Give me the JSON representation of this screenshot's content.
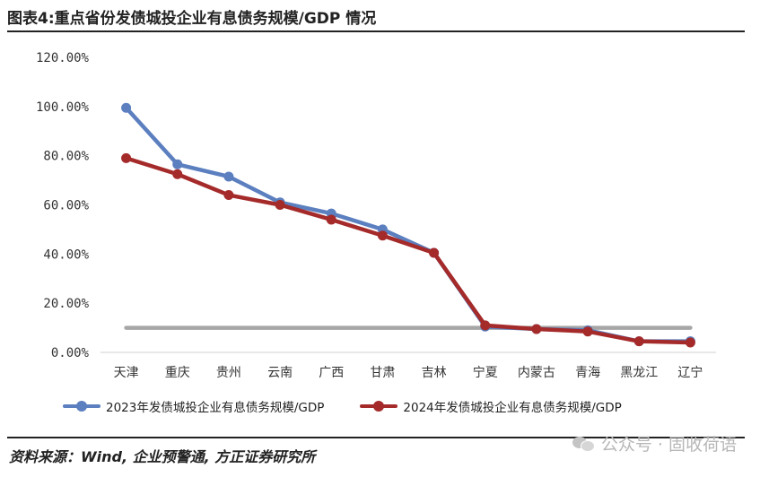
{
  "title": "图表4:重点省份发债城投企业有息债务规模/GDP 情况",
  "source": "资料来源：Wind, 企业预警通, 方正证券研究所",
  "watermark": "公众号 · 固收荷语",
  "chart_data": {
    "type": "line",
    "categories": [
      "天津",
      "重庆",
      "贵州",
      "云南",
      "广西",
      "甘肃",
      "吉林",
      "宁夏",
      "内蒙古",
      "青海",
      "黑龙江",
      "辽宁"
    ],
    "series": [
      {
        "name": "2023年发债城投企业有息债务规模/GDP",
        "color": "#5b7fbf",
        "values": [
          99.5,
          76.5,
          71.5,
          61.0,
          56.5,
          50.0,
          40.5,
          10.5,
          9.5,
          9.0,
          4.5,
          4.5
        ]
      },
      {
        "name": "2024年发债城投企业有息债务规模/GDP",
        "color": "#a52a2a",
        "values": [
          79.0,
          72.5,
          64.0,
          60.0,
          54.0,
          47.5,
          40.5,
          11.0,
          9.5,
          8.5,
          4.5,
          4.0
        ]
      }
    ],
    "reference_line": {
      "value": 10,
      "color": "#a6a6a6"
    },
    "yticks": [
      "0.00%",
      "20.00%",
      "40.00%",
      "60.00%",
      "80.00%",
      "100.00%",
      "120.00%"
    ],
    "ylim": [
      0,
      120
    ],
    "grid": false,
    "legend": "bottom"
  }
}
